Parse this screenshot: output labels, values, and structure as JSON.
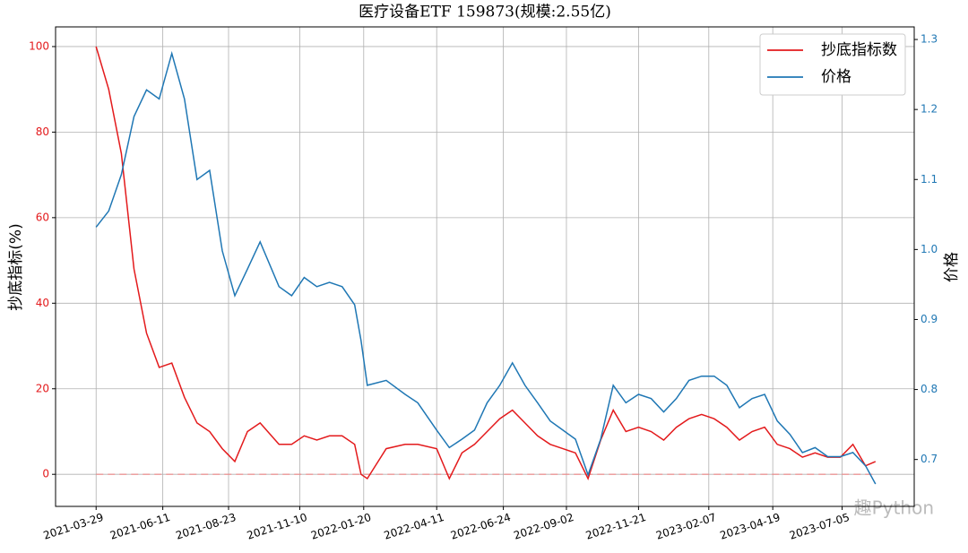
{
  "chart_data": {
    "type": "line",
    "title": "医疗设备ETF  159873(规模:2.55亿)",
    "ylabel": "抄底指标(%)",
    "y2label": "价格",
    "watermark": "趣Python",
    "x": [
      "2021-03-29",
      "2021-04-12",
      "2021-04-26",
      "2021-05-10",
      "2021-05-24",
      "2021-06-07",
      "2021-06-21",
      "2021-07-05",
      "2021-07-19",
      "2021-08-02",
      "2021-08-16",
      "2021-08-30",
      "2021-09-13",
      "2021-09-27",
      "2021-10-18",
      "2021-11-01",
      "2021-11-15",
      "2021-11-29",
      "2021-12-13",
      "2021-12-27",
      "2022-01-10",
      "2022-01-17",
      "2022-01-24",
      "2022-02-14",
      "2022-03-07",
      "2022-03-21",
      "2022-04-11",
      "2022-04-25",
      "2022-05-09",
      "2022-05-23",
      "2022-06-06",
      "2022-06-20",
      "2022-07-04",
      "2022-07-18",
      "2022-08-01",
      "2022-08-15",
      "2022-08-29",
      "2022-09-12",
      "2022-09-26",
      "2022-10-10",
      "2022-10-24",
      "2022-11-07",
      "2022-11-21",
      "2022-12-05",
      "2022-12-19",
      "2023-01-02",
      "2023-01-16",
      "2023-01-30",
      "2023-02-13",
      "2023-02-27",
      "2023-03-13",
      "2023-03-27",
      "2023-04-10",
      "2023-04-24",
      "2023-05-08",
      "2023-05-22",
      "2023-06-05",
      "2023-06-19",
      "2023-07-03",
      "2023-07-17",
      "2023-07-31",
      "2023-08-11"
    ],
    "series": [
      {
        "name": "抄底指标数",
        "color": "#e31a1c",
        "axis": "y",
        "values": [
          100,
          90,
          75,
          48,
          33,
          25,
          26,
          18,
          12,
          10,
          6,
          3,
          10,
          12,
          7,
          7,
          9,
          8,
          9,
          9,
          7,
          0,
          -1,
          6,
          7,
          7,
          6,
          -1,
          5,
          7,
          10,
          13,
          15,
          12,
          9,
          7,
          6,
          5,
          -1,
          8,
          15,
          10,
          11,
          10,
          8,
          11,
          13,
          14,
          13,
          11,
          8,
          10,
          11,
          7,
          6,
          4,
          5,
          4,
          4,
          7,
          2,
          3
        ]
      },
      {
        "name": "价格",
        "color": "#1f77b4",
        "axis": "y2",
        "values": [
          1.032,
          1.055,
          1.107,
          1.19,
          1.228,
          1.215,
          1.28,
          1.215,
          1.1,
          1.113,
          0.998,
          0.934,
          0.972,
          1.011,
          0.947,
          0.934,
          0.96,
          0.947,
          0.953,
          0.947,
          0.921,
          0.87,
          0.806,
          0.813,
          0.793,
          0.781,
          0.742,
          0.717,
          0.729,
          0.742,
          0.781,
          0.806,
          0.838,
          0.806,
          0.781,
          0.755,
          0.742,
          0.729,
          0.678,
          0.729,
          0.806,
          0.781,
          0.793,
          0.787,
          0.768,
          0.787,
          0.813,
          0.819,
          0.819,
          0.806,
          0.774,
          0.787,
          0.793,
          0.755,
          0.736,
          0.71,
          0.717,
          0.704,
          0.704,
          0.71,
          0.691,
          0.665
        ]
      }
    ],
    "xlim": [
      "2021-02-12",
      "2023-09-23"
    ],
    "xticks": [
      "2021-03-29",
      "2021-06-11",
      "2021-08-23",
      "2021-11-10",
      "2022-01-20",
      "2022-04-11",
      "2022-06-24",
      "2022-09-02",
      "2022-11-21",
      "2023-02-07",
      "2023-04-19",
      "2023-07-05"
    ],
    "ylim": [
      -7.5,
      104.6
    ],
    "yticks": [
      0,
      20,
      40,
      60,
      80,
      100
    ],
    "y2lim": [
      0.633,
      1.318
    ],
    "y2ticks": [
      0.7,
      0.8,
      0.9,
      {
        "value": 1,
        "label": "1.0"
      },
      1.1,
      1.2,
      1.3
    ],
    "hline": 0,
    "grid": true,
    "legend": "upper right"
  }
}
